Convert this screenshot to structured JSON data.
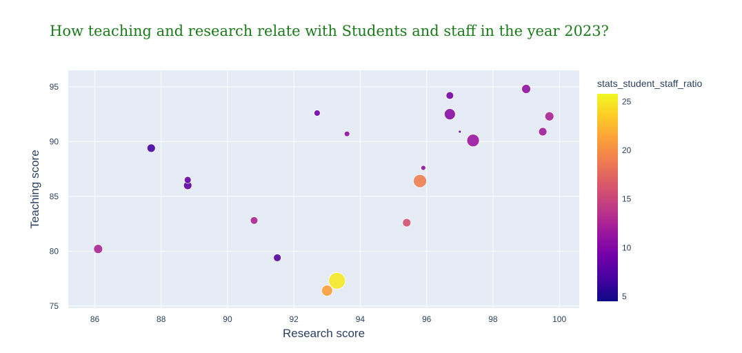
{
  "chart_data": {
    "type": "scatter",
    "title": "How teaching and research relate with Students and staff in the year 2023?",
    "title_color": "#1a7a1a",
    "xlabel": "Research score",
    "ylabel": "Teaching score",
    "xlim": [
      85.2,
      100.6
    ],
    "ylim": [
      74.8,
      96.5
    ],
    "x_ticks": [
      86,
      88,
      90,
      92,
      94,
      96,
      98,
      100
    ],
    "y_ticks": [
      75,
      80,
      85,
      90,
      95
    ],
    "grid": true,
    "plot_background": "#e5ecf6",
    "colorbar": {
      "title": "stats_student_staff_ratio",
      "range": [
        4.5,
        25.8
      ],
      "ticks": [
        5,
        10,
        15,
        20,
        25
      ]
    },
    "points": [
      {
        "x": 86.1,
        "y": 80.2,
        "c": 12.5,
        "size": 13
      },
      {
        "x": 87.7,
        "y": 89.4,
        "c": 7.0,
        "size": 12
      },
      {
        "x": 88.8,
        "y": 86.5,
        "c": 8.5,
        "size": 10
      },
      {
        "x": 88.8,
        "y": 86.0,
        "c": 8.0,
        "size": 12
      },
      {
        "x": 90.8,
        "y": 82.8,
        "c": 12.5,
        "size": 11
      },
      {
        "x": 91.5,
        "y": 79.4,
        "c": 7.5,
        "size": 11
      },
      {
        "x": 92.7,
        "y": 92.6,
        "c": 9.0,
        "size": 9
      },
      {
        "x": 93.0,
        "y": 76.4,
        "c": 21.0,
        "size": 16
      },
      {
        "x": 93.3,
        "y": 77.3,
        "c": 25.0,
        "size": 24
      },
      {
        "x": 93.6,
        "y": 90.7,
        "c": 11.0,
        "size": 8
      },
      {
        "x": 95.4,
        "y": 82.6,
        "c": 16.0,
        "size": 12
      },
      {
        "x": 95.8,
        "y": 86.4,
        "c": 19.0,
        "size": 19
      },
      {
        "x": 95.9,
        "y": 87.6,
        "c": 11.0,
        "size": 7
      },
      {
        "x": 96.7,
        "y": 94.2,
        "c": 9.5,
        "size": 11
      },
      {
        "x": 96.7,
        "y": 92.5,
        "c": 10.5,
        "size": 16
      },
      {
        "x": 97.0,
        "y": 90.9,
        "c": 8.0,
        "size": 4
      },
      {
        "x": 97.4,
        "y": 90.1,
        "c": 11.5,
        "size": 18
      },
      {
        "x": 99.0,
        "y": 94.8,
        "c": 11.0,
        "size": 13
      },
      {
        "x": 99.5,
        "y": 90.9,
        "c": 12.0,
        "size": 12
      },
      {
        "x": 99.7,
        "y": 92.3,
        "c": 12.5,
        "size": 13
      }
    ]
  }
}
